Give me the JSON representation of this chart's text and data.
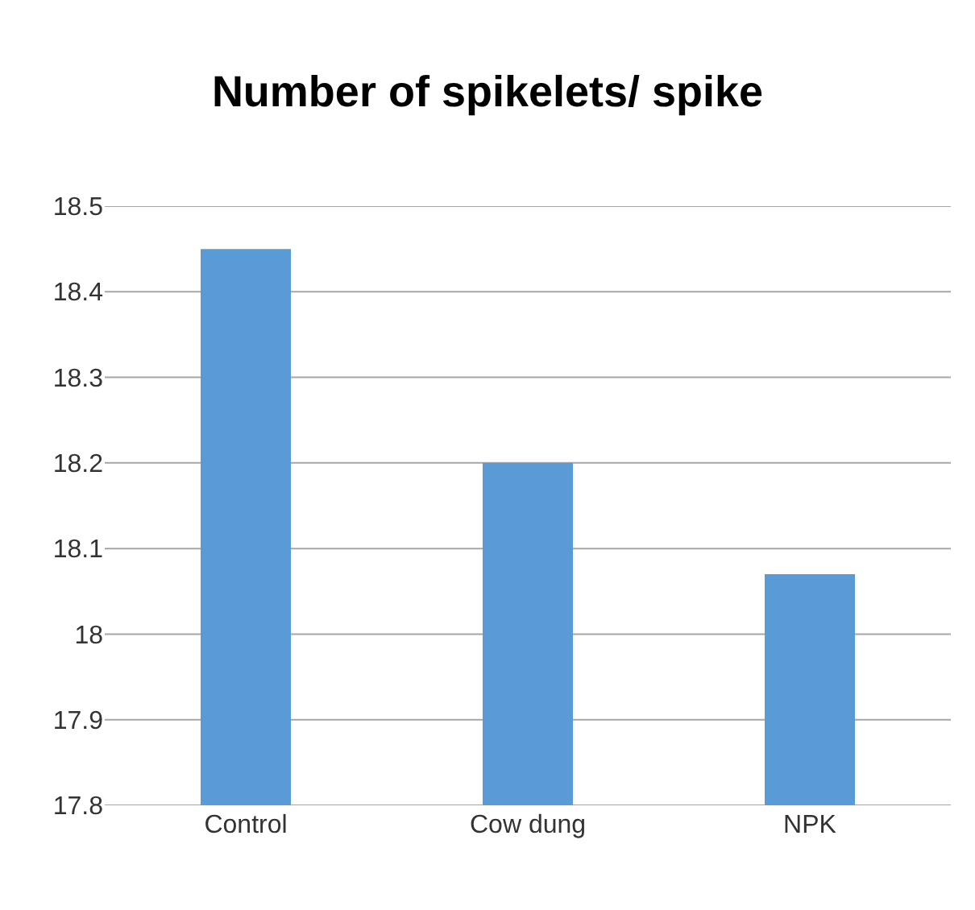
{
  "chart_data": {
    "type": "bar",
    "title": "Number of spikelets/ spike",
    "categories": [
      "Control",
      "Cow dung",
      "NPK"
    ],
    "values": [
      18.45,
      18.2,
      18.07
    ],
    "color": "#5b9bd5",
    "ylim": [
      17.8,
      18.5
    ],
    "yticks": [
      17.8,
      17.9,
      18,
      18.1,
      18.2,
      18.3,
      18.4,
      18.5
    ],
    "grid": true
  }
}
